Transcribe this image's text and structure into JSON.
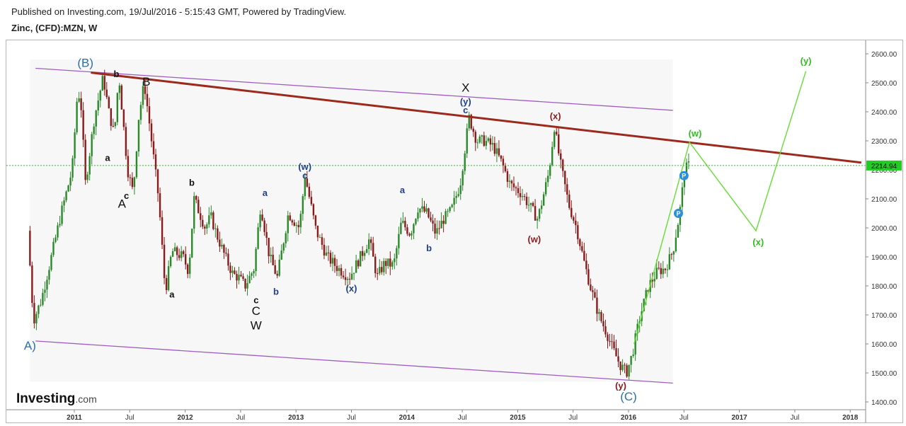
{
  "header": {
    "published": "Published on Investing.com, 19/Jul/2016 - 5:15:43 GMT, Powered by TradingView.",
    "symbol": "Zinc, (CFD):MZN, W"
  },
  "logo": {
    "text_main": "Investing",
    "text_suffix": ".com"
  },
  "colors": {
    "up": "#2a8a2a",
    "down": "#8b1a1a",
    "channel": "#a05cc0",
    "resistance": "#9b2a1c",
    "projection": "#66dd33",
    "price_line": "#22cc22",
    "label_blue": "#1f3f8f",
    "label_red": "#8b1a1a",
    "label_green": "#33bb22",
    "label_black": "#111111",
    "label_teal": "#2b6fa6"
  },
  "chart_data": {
    "type": "candlestick",
    "title": "Zinc, (CFD):MZN, W",
    "xlabel": "",
    "ylabel": "",
    "ylim": [
      1400,
      2600
    ],
    "xlim": [
      2010.6,
      2018.1
    ],
    "y_ticks": [
      "2600.00",
      "2500.00",
      "2400.00",
      "2300.00",
      "2200.00",
      "2100.00",
      "2000.00",
      "1900.00",
      "1800.00",
      "1700.00",
      "1600.00",
      "1500.00",
      "1400.00"
    ],
    "x_ticks": [
      {
        "t": 2011.0,
        "label": "2011",
        "bold": true
      },
      {
        "t": 2011.5,
        "label": "Jul",
        "bold": false
      },
      {
        "t": 2012.0,
        "label": "2012",
        "bold": true
      },
      {
        "t": 2012.5,
        "label": "Jul",
        "bold": false
      },
      {
        "t": 2013.0,
        "label": "2013",
        "bold": true
      },
      {
        "t": 2013.5,
        "label": "Jul",
        "bold": false
      },
      {
        "t": 2014.0,
        "label": "2014",
        "bold": true
      },
      {
        "t": 2014.5,
        "label": "Jul",
        "bold": false
      },
      {
        "t": 2015.0,
        "label": "2015",
        "bold": true
      },
      {
        "t": 2015.5,
        "label": "Jul",
        "bold": false
      },
      {
        "t": 2016.0,
        "label": "2016",
        "bold": true
      },
      {
        "t": 2016.5,
        "label": "Jul",
        "bold": false
      },
      {
        "t": 2017.0,
        "label": "2017",
        "bold": true
      },
      {
        "t": 2017.5,
        "label": "Jul",
        "bold": false
      },
      {
        "t": 2018.0,
        "label": "2018",
        "bold": true
      }
    ],
    "current_price": {
      "value": 2214.94,
      "label": "2214.94"
    },
    "price_path": [
      [
        2010.6,
        1990
      ],
      [
        2010.65,
        1680
      ],
      [
        2010.72,
        1750
      ],
      [
        2010.8,
        1880
      ],
      [
        2010.9,
        2050
      ],
      [
        2011.0,
        2200
      ],
      [
        2011.05,
        2480
      ],
      [
        2011.08,
        2420
      ],
      [
        2011.12,
        2150
      ],
      [
        2011.2,
        2380
      ],
      [
        2011.28,
        2520
      ],
      [
        2011.33,
        2400
      ],
      [
        2011.38,
        2320
      ],
      [
        2011.42,
        2530
      ],
      [
        2011.5,
        2200
      ],
      [
        2011.55,
        2120
      ],
      [
        2011.6,
        2380
      ],
      [
        2011.65,
        2500
      ],
      [
        2011.7,
        2350
      ],
      [
        2011.78,
        2100
      ],
      [
        2011.84,
        1780
      ],
      [
        2011.9,
        1920
      ],
      [
        2012.0,
        1900
      ],
      [
        2012.05,
        1850
      ],
      [
        2012.1,
        2100
      ],
      [
        2012.2,
        2000
      ],
      [
        2012.25,
        2040
      ],
      [
        2012.3,
        1980
      ],
      [
        2012.38,
        1900
      ],
      [
        2012.45,
        1840
      ],
      [
        2012.5,
        1830
      ],
      [
        2012.56,
        1800
      ],
      [
        2012.64,
        1860
      ],
      [
        2012.7,
        2080
      ],
      [
        2012.78,
        1900
      ],
      [
        2012.85,
        1830
      ],
      [
        2012.95,
        2050
      ],
      [
        2013.05,
        2000
      ],
      [
        2013.1,
        2180
      ],
      [
        2013.2,
        1990
      ],
      [
        2013.3,
        1900
      ],
      [
        2013.4,
        1860
      ],
      [
        2013.5,
        1830
      ],
      [
        2013.6,
        1900
      ],
      [
        2013.68,
        1960
      ],
      [
        2013.75,
        1830
      ],
      [
        2013.82,
        1880
      ],
      [
        2013.9,
        1870
      ],
      [
        2013.97,
        2020
      ],
      [
        2014.05,
        1980
      ],
      [
        2014.12,
        2070
      ],
      [
        2014.2,
        2050
      ],
      [
        2014.28,
        1980
      ],
      [
        2014.35,
        2030
      ],
      [
        2014.42,
        2060
      ],
      [
        2014.5,
        2150
      ],
      [
        2014.58,
        2380
      ],
      [
        2014.65,
        2300
      ],
      [
        2014.72,
        2300
      ],
      [
        2014.8,
        2280
      ],
      [
        2014.88,
        2220
      ],
      [
        2014.95,
        2150
      ],
      [
        2015.05,
        2120
      ],
      [
        2015.12,
        2080
      ],
      [
        2015.2,
        2030
      ],
      [
        2015.3,
        2190
      ],
      [
        2015.35,
        2350
      ],
      [
        2015.4,
        2230
      ],
      [
        2015.48,
        2080
      ],
      [
        2015.55,
        2000
      ],
      [
        2015.62,
        1880
      ],
      [
        2015.68,
        1790
      ],
      [
        2015.75,
        1700
      ],
      [
        2015.82,
        1640
      ],
      [
        2015.88,
        1580
      ],
      [
        2015.94,
        1530
      ],
      [
        2016.0,
        1500
      ],
      [
        2016.05,
        1560
      ],
      [
        2016.12,
        1690
      ],
      [
        2016.2,
        1800
      ],
      [
        2016.28,
        1850
      ],
      [
        2016.35,
        1860
      ],
      [
        2016.42,
        1920
      ],
      [
        2016.48,
        2050
      ],
      [
        2016.52,
        2180
      ],
      [
        2016.55,
        2215
      ]
    ],
    "overlays": {
      "channel_upper": [
        [
          2010.65,
          2550
        ],
        [
          2016.4,
          2405
        ]
      ],
      "channel_lower": [
        [
          2010.65,
          1610
        ],
        [
          2016.4,
          1465
        ]
      ],
      "resistance": [
        [
          2011.15,
          2535
        ],
        [
          2018.1,
          2225
        ]
      ],
      "projection": [
        [
          2016.05,
          1600
        ],
        [
          2016.55,
          2295
        ],
        [
          2017.15,
          1990
        ],
        [
          2017.6,
          2540
        ]
      ],
      "shaded_region": [
        [
          2010.6,
          2580
        ],
        [
          2016.4,
          1470
        ]
      ]
    },
    "wave_labels": [
      {
        "text": "(B)",
        "t": 2011.1,
        "v": 2555,
        "color": "label_teal",
        "size": 17
      },
      {
        "text": "b",
        "t": 2011.38,
        "v": 2520,
        "color": "label_black",
        "size": 13,
        "bold": true
      },
      {
        "text": "B",
        "t": 2011.65,
        "v": 2490,
        "color": "label_black",
        "size": 17
      },
      {
        "text": "a",
        "t": 2011.3,
        "v": 2230,
        "color": "label_black",
        "size": 13,
        "bold": true
      },
      {
        "text": "A",
        "t": 2011.43,
        "v": 2070,
        "color": "label_black",
        "size": 17
      },
      {
        "text": "c",
        "t": 2011.47,
        "v": 2100,
        "color": "label_black",
        "size": 13,
        "bold": true
      },
      {
        "text": "a",
        "t": 2011.88,
        "v": 1760,
        "color": "label_black",
        "size": 13,
        "bold": true
      },
      {
        "text": "b",
        "t": 2012.06,
        "v": 2145,
        "color": "label_black",
        "size": 13,
        "bold": true
      },
      {
        "text": "c",
        "t": 2012.64,
        "v": 1740,
        "color": "label_black",
        "size": 13,
        "bold": true
      },
      {
        "text": "C",
        "t": 2012.64,
        "v": 1700,
        "color": "label_black",
        "size": 17
      },
      {
        "text": "W",
        "t": 2012.64,
        "v": 1650,
        "color": "label_black",
        "size": 17
      },
      {
        "text": "a",
        "t": 2012.72,
        "v": 2110,
        "color": "label_blue",
        "size": 13,
        "bold": true
      },
      {
        "text": "b",
        "t": 2012.82,
        "v": 1770,
        "color": "label_blue",
        "size": 13,
        "bold": true
      },
      {
        "text": "(w)",
        "t": 2013.08,
        "v": 2200,
        "color": "label_blue",
        "size": 13,
        "bold": true
      },
      {
        "text": "c",
        "t": 2013.08,
        "v": 2170,
        "color": "label_blue",
        "size": 13,
        "bold": true
      },
      {
        "text": "(x)",
        "t": 2013.5,
        "v": 1780,
        "color": "label_blue",
        "size": 13,
        "bold": true
      },
      {
        "text": "a",
        "t": 2013.96,
        "v": 2120,
        "color": "label_blue",
        "size": 13,
        "bold": true
      },
      {
        "text": "b",
        "t": 2014.2,
        "v": 1920,
        "color": "label_blue",
        "size": 13,
        "bold": true
      },
      {
        "text": "X",
        "t": 2014.53,
        "v": 2470,
        "color": "label_black",
        "size": 17
      },
      {
        "text": "(y)",
        "t": 2014.53,
        "v": 2425,
        "color": "label_blue",
        "size": 13,
        "bold": true
      },
      {
        "text": "c",
        "t": 2014.53,
        "v": 2395,
        "color": "label_blue",
        "size": 13,
        "bold": true
      },
      {
        "text": "(x)",
        "t": 2015.34,
        "v": 2375,
        "color": "label_red",
        "size": 13,
        "bold": true
      },
      {
        "text": "(w)",
        "t": 2015.15,
        "v": 1950,
        "color": "label_red",
        "size": 13,
        "bold": true
      },
      {
        "text": "(y)",
        "t": 2015.93,
        "v": 1445,
        "color": "label_red",
        "size": 13,
        "bold": true
      },
      {
        "text": "(C)",
        "t": 2016.0,
        "v": 1405,
        "color": "label_teal",
        "size": 17
      },
      {
        "text": "(w)",
        "t": 2016.6,
        "v": 2315,
        "color": "label_green",
        "size": 13,
        "bold": true
      },
      {
        "text": "(x)",
        "t": 2017.17,
        "v": 1940,
        "color": "label_green",
        "size": 13,
        "bold": true
      },
      {
        "text": "(y)",
        "t": 2017.6,
        "v": 2565,
        "color": "label_green",
        "size": 13,
        "bold": true
      },
      {
        "text": "A)",
        "t": 2010.6,
        "v": 1580,
        "color": "label_teal",
        "size": 17
      }
    ],
    "markers": [
      {
        "text": "P",
        "t": 2016.5,
        "v": 2180
      },
      {
        "text": "P",
        "t": 2016.45,
        "v": 2050
      }
    ],
    "grid": false,
    "legend": "none"
  }
}
